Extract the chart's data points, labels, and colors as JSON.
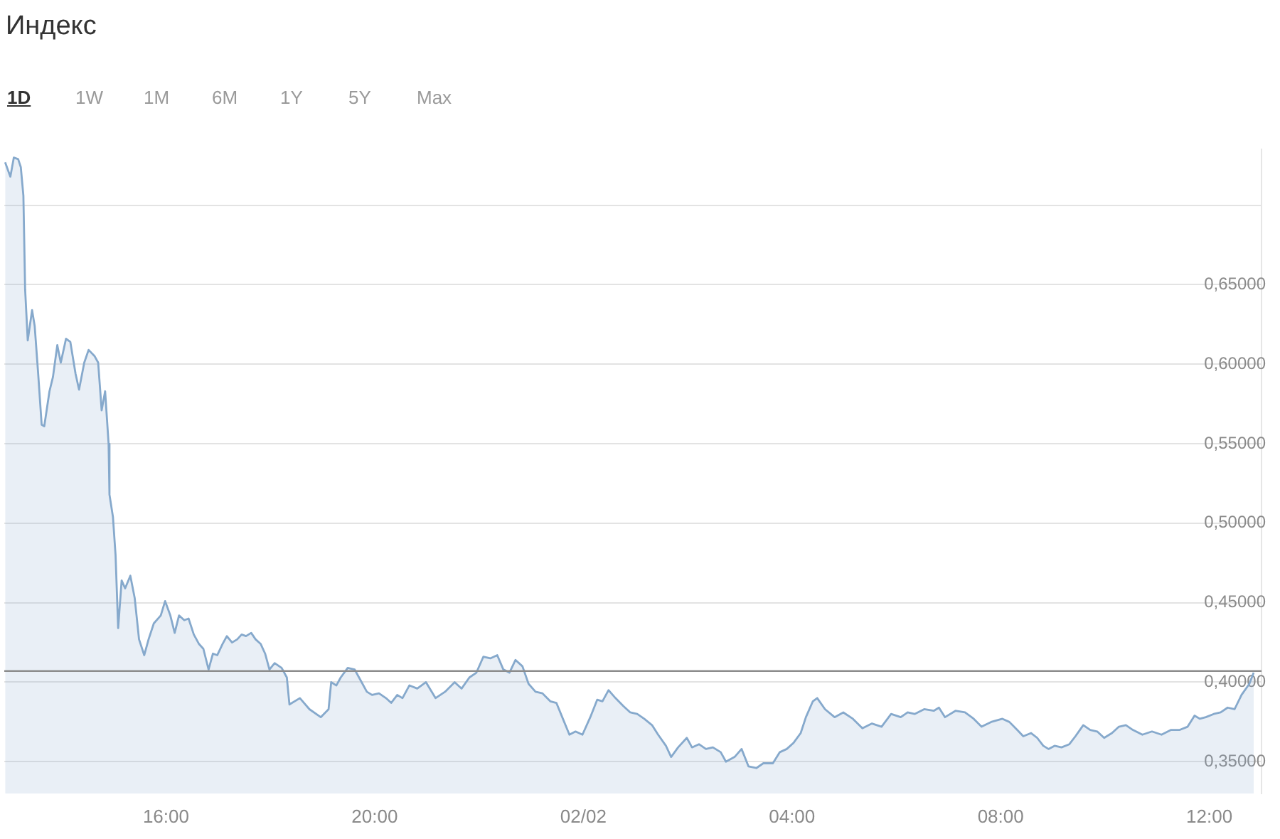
{
  "chart_data": {
    "type": "area",
    "title": "Индекс",
    "annotations": [
      "1D",
      "1W",
      "1M",
      "6M",
      "1Y",
      "5Y",
      "Max"
    ],
    "color": "#86a9cc",
    "grid": "y",
    "xlim": [
      "--02-01T12:54",
      "--02-02T13:00"
    ],
    "xticks": [
      {
        "value": "--02-01T16:00",
        "label": "16:00"
      },
      {
        "value": "--02-01T20:00",
        "label": "20:00"
      },
      {
        "value": "--02-02T00:00",
        "label": "02/02"
      },
      {
        "value": "--02-02T04:00",
        "label": "04:00"
      },
      {
        "value": "--02-02T08:00",
        "label": "08:00"
      },
      {
        "value": "--02-02T12:00",
        "label": "12:00"
      }
    ],
    "ylim": [
      0.33,
      0.735
    ],
    "yticks": [
      {
        "value": 0.35,
        "label": "0,35000"
      },
      {
        "value": 0.4,
        "label": "0,40000"
      },
      {
        "value": 0.45,
        "label": "0,45000"
      },
      {
        "value": 0.5,
        "label": "0,50000"
      },
      {
        "value": 0.55,
        "label": "0,55000"
      },
      {
        "value": 0.6,
        "label": "0,60000"
      },
      {
        "value": 0.65,
        "label": "0,65000"
      },
      {
        "value": 0.7,
        "label": null
      }
    ],
    "ref_lines": [
      {
        "axis": "y",
        "value": 0.407,
        "color": "#8c8c8c"
      }
    ],
    "x": [
      "--02-01T12:55",
      "--02-01T13:01",
      "--02-01T13:05",
      "--02-01T13:10",
      "--02-01T13:13",
      "--02-01T13:16",
      "--02-01T13:18",
      "--02-01T13:21",
      "--02-01T13:26",
      "--02-01T13:29",
      "--02-01T13:33",
      "--02-01T13:37",
      "--02-01T13:40",
      "--02-01T13:46",
      "--02-01T13:50",
      "--02-01T13:55",
      "--02-01T13:59",
      "--02-01T14:05",
      "--02-01T14:10",
      "--02-01T14:16",
      "--02-01T14:20",
      "--02-01T14:26",
      "--02-01T14:31",
      "--02-01T14:38",
      "--02-01T14:42",
      "--02-01T14:46",
      "--02-01T14:50",
      "--02-01T14:54",
      "--02-01T14:55",
      "--02-01T14:59",
      "--02-01T15:02",
      "--02-01T15:05",
      "--02-01T15:09",
      "--02-01T15:13",
      "--02-01T15:19",
      "--02-01T15:24",
      "--02-01T15:29",
      "--02-01T15:35",
      "--02-01T15:40",
      "--02-01T15:46",
      "--02-01T15:54",
      "--02-01T15:59",
      "--02-01T16:05",
      "--02-01T16:10",
      "--02-01T16:15",
      "--02-01T16:21",
      "--02-01T16:26",
      "--02-01T16:32",
      "--02-01T16:38",
      "--02-01T16:43",
      "--02-01T16:49",
      "--02-01T16:54",
      "--02-01T16:59",
      "--02-01T17:05",
      "--02-01T17:10",
      "--02-01T17:16",
      "--02-01T17:22",
      "--02-01T17:27",
      "--02-01T17:32",
      "--02-01T17:38",
      "--02-01T17:43",
      "--02-01T17:49",
      "--02-01T17:54",
      "--02-01T17:59",
      "--02-01T18:05",
      "--02-01T18:13",
      "--02-01T18:19",
      "--02-01T18:22",
      "--02-01T18:34",
      "--02-01T18:45",
      "--02-01T18:58",
      "--02-01T19:07",
      "--02-01T19:10",
      "--02-01T19:16",
      "--02-01T19:21",
      "--02-01T19:29",
      "--02-01T19:37",
      "--02-01T19:43",
      "--02-01T19:51",
      "--02-01T19:57",
      "--02-01T20:05",
      "--02-01T20:13",
      "--02-01T20:19",
      "--02-01T20:26",
      "--02-01T20:32",
      "--02-01T20:40",
      "--02-01T20:49",
      "--02-01T20:59",
      "--02-01T21:10",
      "--02-01T21:21",
      "--02-01T21:32",
      "--02-01T21:40",
      "--02-01T21:49",
      "--02-01T21:57",
      "--02-01T22:05",
      "--02-01T22:13",
      "--02-01T22:21",
      "--02-01T22:28",
      "--02-01T22:35",
      "--02-01T22:42",
      "--02-01T22:50",
      "--02-01T22:57",
      "--02-01T23:05",
      "--02-01T23:13",
      "--02-01T23:22",
      "--02-01T23:29",
      "--02-01T23:38",
      "--02-01T23:44",
      "--02-01T23:51",
      "--02-01T23:59",
      "--02-02T00:08",
      "--02-02T00:16",
      "--02-02T00:22",
      "--02-02T00:29",
      "--02-02T00:37",
      "--02-02T00:46",
      "--02-02T00:54",
      "--02-02T01:02",
      "--02-02T01:10",
      "--02-02T01:19",
      "--02-02T01:26",
      "--02-02T01:35",
      "--02-02T01:41",
      "--02-02T01:49",
      "--02-02T01:59",
      "--02-02T02:05",
      "--02-02T02:13",
      "--02-02T02:21",
      "--02-02T02:29",
      "--02-02T02:38",
      "--02-02T02:44",
      "--02-02T02:54",
      "--02-02T03:02",
      "--02-02T03:10",
      "--02-02T03:19",
      "--02-02T03:27",
      "--02-02T03:38",
      "--02-02T03:46",
      "--02-02T03:54",
      "--02-02T04:02",
      "--02-02T04:10",
      "--02-02T04:16",
      "--02-02T04:24",
      "--02-02T04:29",
      "--02-02T04:38",
      "--02-02T04:49",
      "--02-02T04:59",
      "--02-02T05:10",
      "--02-02T05:21",
      "--02-02T05:32",
      "--02-02T05:43",
      "--02-02T05:54",
      "--02-02T06:05",
      "--02-02T06:13",
      "--02-02T06:21",
      "--02-02T06:32",
      "--02-02T06:43",
      "--02-02T06:49",
      "--02-02T06:56",
      "--02-02T07:08",
      "--02-02T07:19",
      "--02-02T07:29",
      "--02-02T07:38",
      "--02-02T07:49",
      "--02-02T08:02",
      "--02-02T08:10",
      "--02-02T08:19",
      "--02-02T08:26",
      "--02-02T08:35",
      "--02-02T08:42",
      "--02-02T08:49",
      "--02-02T08:55",
      "--02-02T09:02",
      "--02-02T09:10",
      "--02-02T09:19",
      "--02-02T09:26",
      "--02-02T09:35",
      "--02-02T09:43",
      "--02-02T09:51",
      "--02-02T09:59",
      "--02-02T10:08",
      "--02-02T10:16",
      "--02-02T10:24",
      "--02-02T10:32",
      "--02-02T10:43",
      "--02-02T10:54",
      "--02-02T11:05",
      "--02-02T11:16",
      "--02-02T11:26",
      "--02-02T11:35",
      "--02-02T11:43",
      "--02-02T11:49",
      "--02-02T11:56",
      "--02-02T12:05",
      "--02-02T12:13",
      "--02-02T12:21",
      "--02-02T12:29",
      "--02-02T12:37",
      "--02-02T12:46",
      "--02-02T12:51"
    ],
    "values": [
      0.727,
      0.718,
      0.73,
      0.729,
      0.724,
      0.706,
      0.647,
      0.615,
      0.634,
      0.624,
      0.594,
      0.562,
      0.561,
      0.583,
      0.592,
      0.612,
      0.601,
      0.616,
      0.614,
      0.594,
      0.584,
      0.601,
      0.609,
      0.605,
      0.601,
      0.571,
      0.583,
      0.55,
      0.518,
      0.504,
      0.48,
      0.434,
      0.464,
      0.459,
      0.467,
      0.453,
      0.427,
      0.417,
      0.427,
      0.437,
      0.442,
      0.451,
      0.442,
      0.431,
      0.442,
      0.439,
      0.44,
      0.43,
      0.424,
      0.421,
      0.408,
      0.418,
      0.417,
      0.424,
      0.429,
      0.425,
      0.427,
      0.43,
      0.429,
      0.431,
      0.427,
      0.424,
      0.418,
      0.408,
      0.412,
      0.409,
      0.403,
      0.386,
      0.39,
      0.383,
      0.378,
      0.383,
      0.4,
      0.398,
      0.403,
      0.409,
      0.408,
      0.402,
      0.394,
      0.392,
      0.393,
      0.39,
      0.387,
      0.392,
      0.39,
      0.398,
      0.396,
      0.4,
      0.39,
      0.394,
      0.4,
      0.396,
      0.403,
      0.406,
      0.416,
      0.415,
      0.417,
      0.408,
      0.406,
      0.414,
      0.41,
      0.399,
      0.394,
      0.393,
      0.388,
      0.387,
      0.375,
      0.367,
      0.369,
      0.367,
      0.378,
      0.389,
      0.388,
      0.395,
      0.39,
      0.385,
      0.381,
      0.38,
      0.377,
      0.373,
      0.367,
      0.36,
      0.353,
      0.359,
      0.365,
      0.359,
      0.361,
      0.358,
      0.359,
      0.356,
      0.35,
      0.353,
      0.358,
      0.347,
      0.346,
      0.349,
      0.349,
      0.356,
      0.358,
      0.362,
      0.368,
      0.378,
      0.388,
      0.39,
      0.383,
      0.378,
      0.381,
      0.377,
      0.371,
      0.374,
      0.372,
      0.38,
      0.378,
      0.381,
      0.38,
      0.383,
      0.382,
      0.384,
      0.378,
      0.382,
      0.381,
      0.377,
      0.372,
      0.375,
      0.377,
      0.375,
      0.37,
      0.366,
      0.368,
      0.365,
      0.36,
      0.358,
      0.36,
      0.359,
      0.361,
      0.366,
      0.373,
      0.37,
      0.369,
      0.365,
      0.368,
      0.372,
      0.373,
      0.37,
      0.367,
      0.369,
      0.367,
      0.37,
      0.37,
      0.372,
      0.379,
      0.377,
      0.378,
      0.38,
      0.381,
      0.384,
      0.383,
      0.392,
      0.399,
      0.406
    ]
  }
}
